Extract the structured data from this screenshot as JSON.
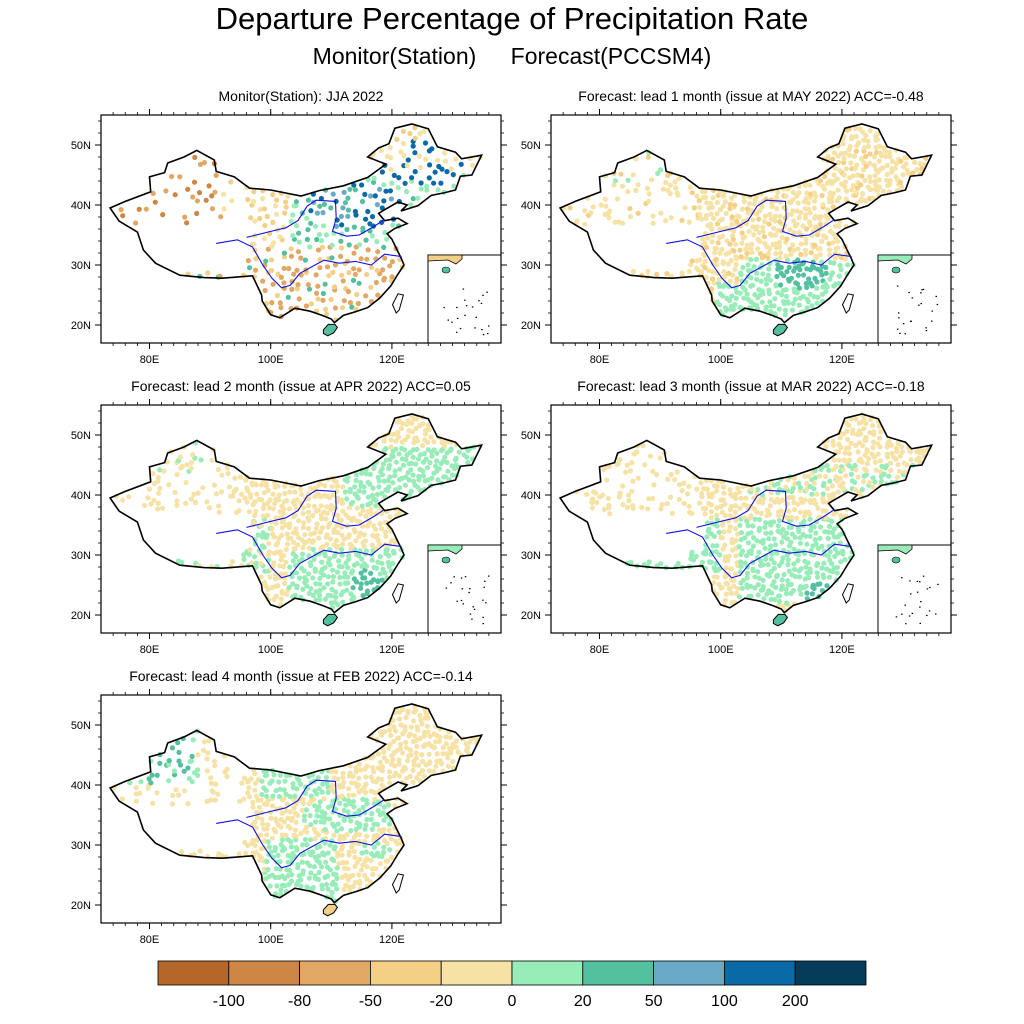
{
  "figure": {
    "title": "Departure Percentage of Precipitation Rate",
    "subtitle_left": "Monitor(Station)",
    "subtitle_right": "Forecast(PCCSM4)"
  },
  "axes": {
    "lat_labels": [
      "50N",
      "40N",
      "30N",
      "20N"
    ],
    "lon_labels": [
      "80E",
      "100E",
      "120E"
    ]
  },
  "panels": [
    {
      "title": "Monitor(Station): JJA 2022",
      "kind": "monitor",
      "has_inset": true
    },
    {
      "title": "Forecast: lead 1 month (issue at MAY 2022) ACC=-0.48",
      "kind": "lead1",
      "has_inset": true
    },
    {
      "title": "Forecast: lead 2 month (issue at APR 2022) ACC=0.05",
      "kind": "lead2",
      "has_inset": true
    },
    {
      "title": "Forecast: lead 3 month (issue at MAR 2022) ACC=-0.18",
      "kind": "lead3",
      "has_inset": true
    },
    {
      "title": "Forecast: lead 4 month (issue at FEB 2022) ACC=-0.14",
      "kind": "lead4",
      "has_inset": false
    }
  ],
  "colorbar": {
    "labels": [
      "-100",
      "-80",
      "-50",
      "-20",
      "0",
      "20",
      "50",
      "100",
      "200"
    ],
    "colors": [
      "#b5672a",
      "#cd8643",
      "#e1a765",
      "#f4cf86",
      "#f5e2a4",
      "#97ecb8",
      "#53c0a0",
      "#6aaac8",
      "#0a6aa8",
      "#043c5a"
    ]
  }
}
